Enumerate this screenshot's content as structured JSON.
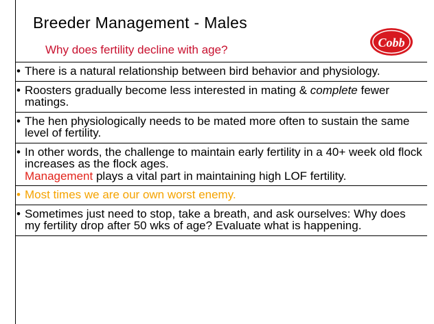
{
  "header": {
    "title": "Breeder Management - Males",
    "subtitle": "Why does fertility decline with age?",
    "logo": "Cobb"
  },
  "bullets": [
    {
      "runs": [
        "There is a natural relationship between bird behavior and physiology."
      ]
    },
    {
      "runs": [
        "Roosters gradually become less interested in mating & ",
        "complete",
        " fewer matings."
      ]
    },
    {
      "runs": [
        "The hen physiologically needs to be mated more often to sustain the same level of fertility."
      ]
    },
    {
      "runs": [
        "In other words, the challenge to maintain early fertility in a 40+ week old flock increases as the flock ages.",
        "Management",
        " plays a vital part in maintaining high LOF fertility."
      ]
    },
    {
      "runs": [
        "Most times we are our own worst enemy."
      ]
    },
    {
      "runs": [
        "Sometimes just need to stop, take a breath, and ask ourselves: Why does my fertility drop after 50 wks of age?  Evaluate what is happening."
      ]
    }
  ]
}
